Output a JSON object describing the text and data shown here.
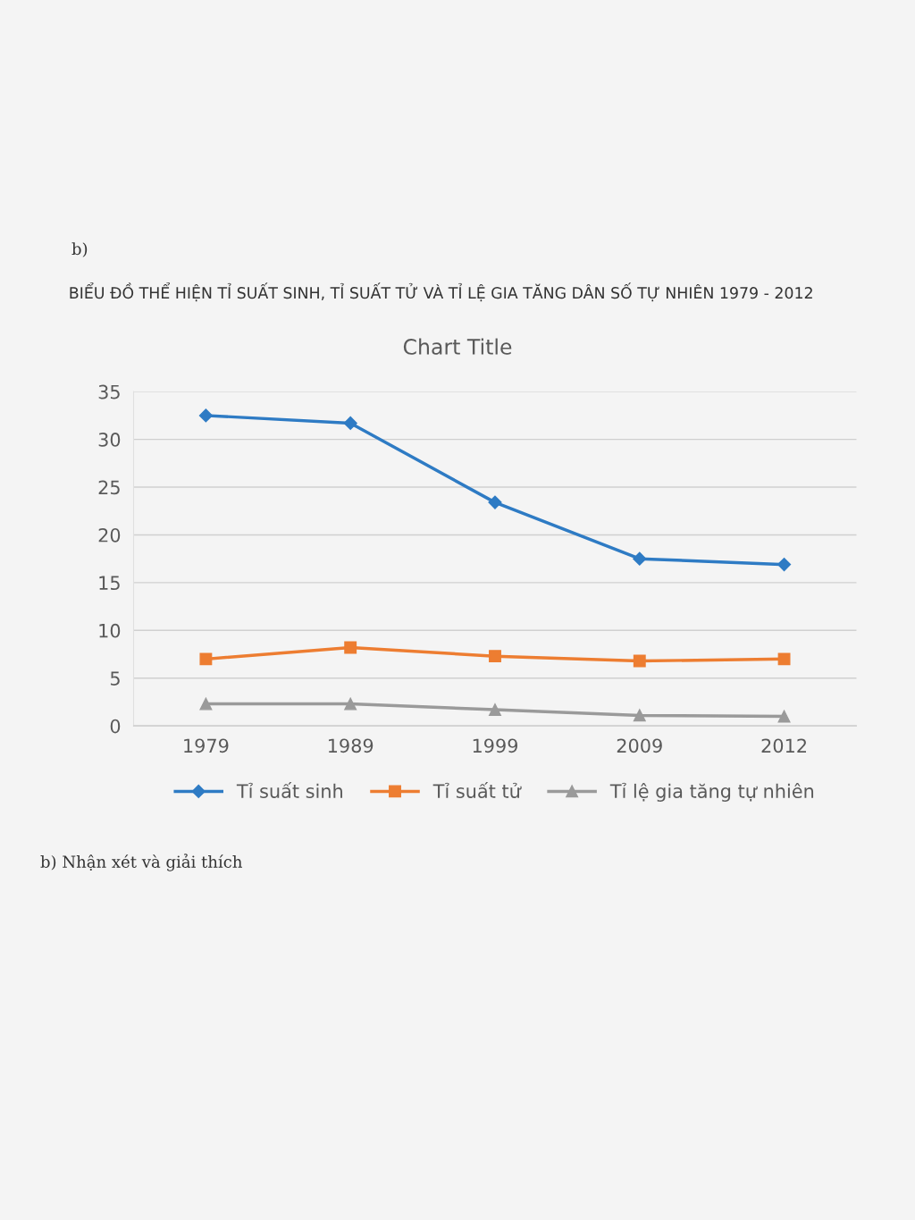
{
  "chart_data": {
    "type": "line",
    "title": "BIỂU ĐỒ THỂ HIỆN TỈ SUẤT SINH, TỈ SUẤT TỬ VÀ TỈ LỆ GIA TĂNG DÂN SỐ TỰ NHIÊN 1979 - 2012",
    "subtitle": "Chart Title",
    "annotations": [
      "b)",
      "b) Nhận xét và giải thích"
    ],
    "categories": [
      "1979",
      "1989",
      "1999",
      "2009",
      "2012"
    ],
    "series": [
      {
        "name": "Tỉ suất sinh",
        "color": "#2e7bc4",
        "marker": "diamond",
        "values": [
          32.5,
          31.7,
          23.4,
          17.5,
          16.9
        ]
      },
      {
        "name": "Tỉ suất tử",
        "color": "#ed7d31",
        "marker": "square",
        "values": [
          7.0,
          8.2,
          7.3,
          6.8,
          7.0
        ]
      },
      {
        "name": "Tỉ lệ gia tăng tự nhiên",
        "color": "#9a9a9a",
        "marker": "triangle",
        "values": [
          2.3,
          2.3,
          1.7,
          1.1,
          1.0
        ]
      }
    ],
    "ylim": [
      0,
      35
    ],
    "yticks": [
      0,
      5,
      10,
      15,
      20,
      25,
      30,
      35
    ],
    "grid": "y",
    "legend": "bottom",
    "line_style": "solid"
  }
}
